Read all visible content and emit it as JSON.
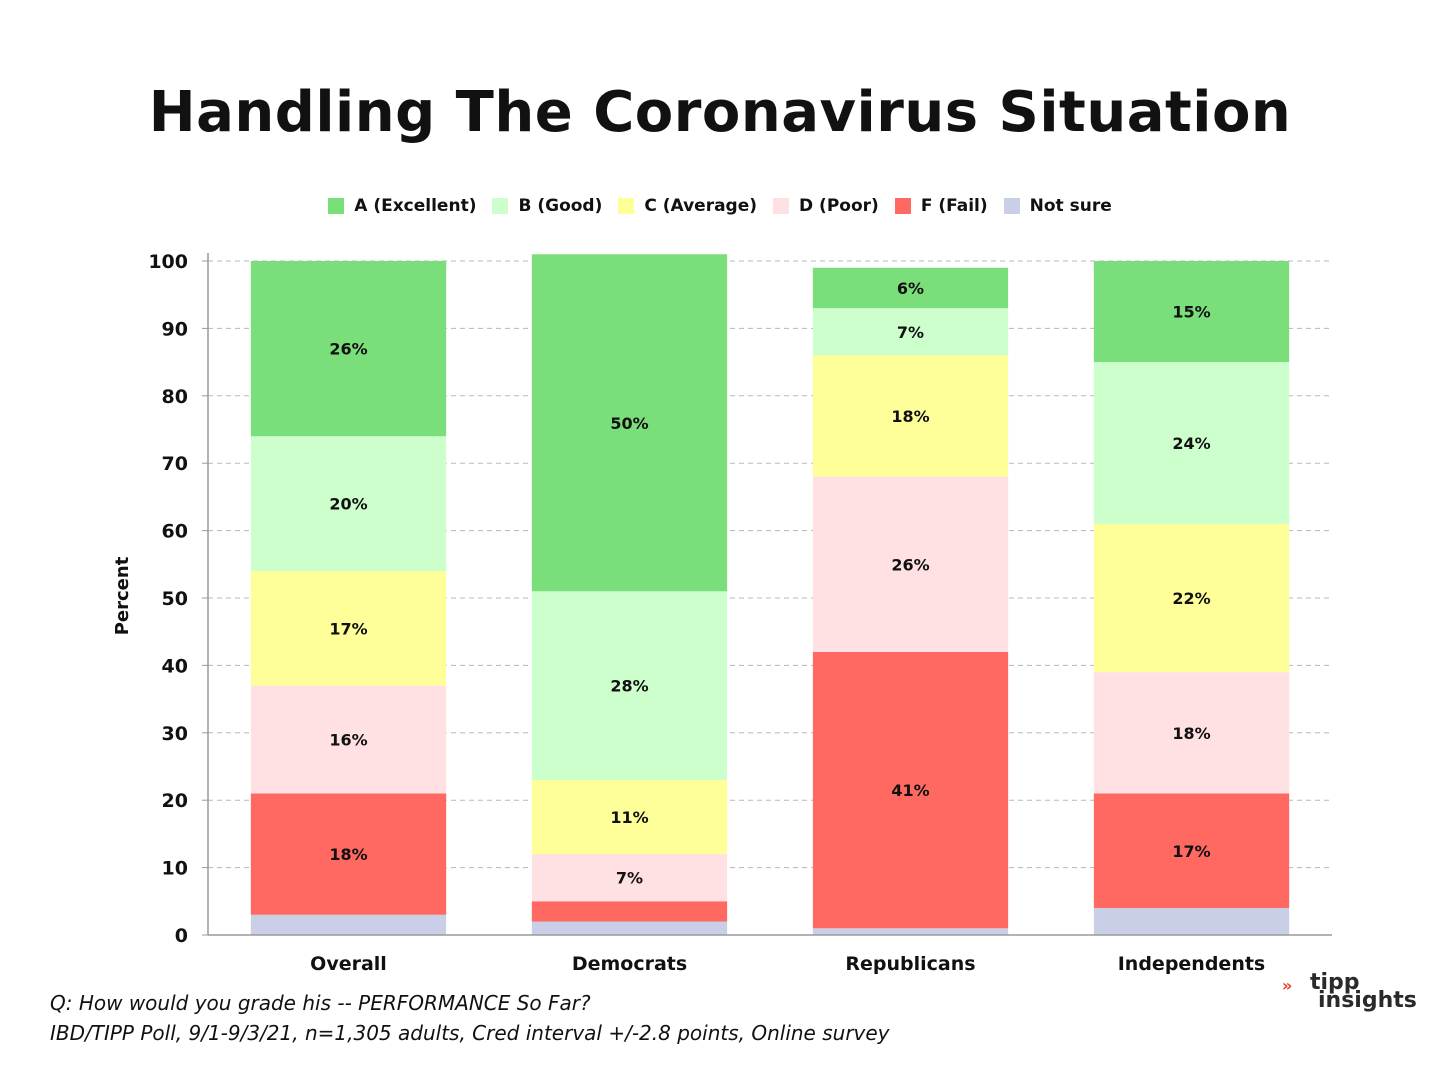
{
  "title": "Handling The Coronavirus Situation",
  "legend": [
    {
      "label": "A (Excellent)",
      "color": "#7ade7a"
    },
    {
      "label": "B (Good)",
      "color": "#ccffcc"
    },
    {
      "label": "C (Average)",
      "color": "#ffff99"
    },
    {
      "label": "D (Poor)",
      "color": "#ffe0e3"
    },
    {
      "label": "F (Fail)",
      "color": "#ff6961"
    },
    {
      "label": "Not sure",
      "color": "#c8cfe6"
    }
  ],
  "footnote": {
    "line1": "Q:  How would you grade his -- PERFORMANCE So Far?",
    "line2": "IBD/TIPP Poll, 9/1-9/3/21, n=1,305 adults, Cred interval +/-2.8 points, Online survey"
  },
  "brand": {
    "mark": "»",
    "line1": "tipp",
    "line2": "insights"
  },
  "chart_data": {
    "type": "bar",
    "stacked": true,
    "title": "Handling The Coronavirus Situation",
    "xlabel": "",
    "ylabel": "Percent",
    "ylim": [
      0,
      100
    ],
    "yticks": [
      0,
      10,
      20,
      30,
      40,
      50,
      60,
      70,
      80,
      90,
      100
    ],
    "grid": true,
    "legend_position": "top-center",
    "categories": [
      "Overall",
      "Democrats",
      "Republicans",
      "Independents"
    ],
    "series": [
      {
        "name": "Not sure",
        "color": "#c8cfe6",
        "values": [
          3,
          2,
          1,
          4
        ],
        "labels": [
          "",
          "",
          "",
          ""
        ]
      },
      {
        "name": "F (Fail)",
        "color": "#ff6961",
        "values": [
          18,
          3,
          41,
          17
        ],
        "labels": [
          "18%",
          "",
          "41%",
          "17%"
        ]
      },
      {
        "name": "D (Poor)",
        "color": "#ffe0e3",
        "values": [
          16,
          7,
          26,
          18
        ],
        "labels": [
          "16%",
          "7%",
          "26%",
          "18%"
        ]
      },
      {
        "name": "C (Average)",
        "color": "#ffff99",
        "values": [
          17,
          11,
          18,
          22
        ],
        "labels": [
          "17%",
          "11%",
          "18%",
          "22%"
        ]
      },
      {
        "name": "B (Good)",
        "color": "#ccffcc",
        "values": [
          20,
          28,
          7,
          24
        ],
        "labels": [
          "20%",
          "28%",
          "7%",
          "24%"
        ]
      },
      {
        "name": "A (Excellent)",
        "color": "#7ade7a",
        "values": [
          26,
          50,
          6,
          15
        ],
        "labels": [
          "26%",
          "50%",
          "6%",
          "15%"
        ]
      }
    ]
  }
}
